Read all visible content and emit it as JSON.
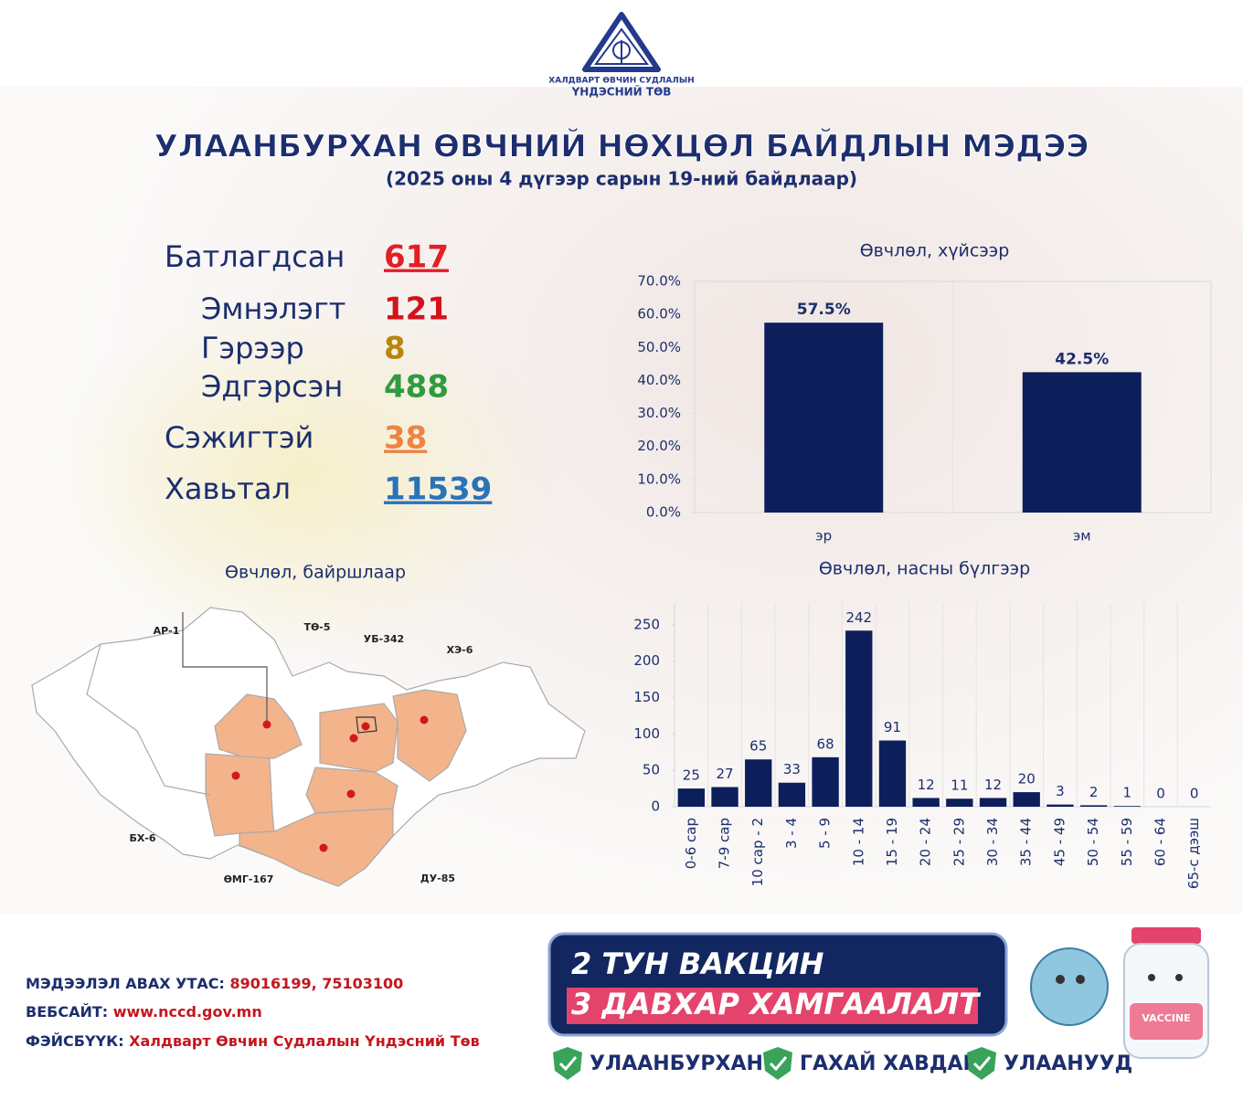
{
  "header": {
    "org_line1": "ХАЛДВАРТ ӨВЧИН СУДЛАЛЫН",
    "org_line2": "ҮНДЭСНИЙ ТӨВ",
    "title": "УЛААНБУРХАН ӨВЧНИЙ НӨХЦӨЛ БАЙДЛЫН МЭДЭЭ",
    "subtitle": "(2025 оны 4 дүгээр сарын 19-ний байдлаар)"
  },
  "stats": [
    {
      "label": "Батлагдсан",
      "value": 617,
      "color": "#e31e24",
      "underline": true,
      "indent": false
    },
    {
      "label": "Эмнэлэгт",
      "value": 121,
      "color": "#d4121a",
      "underline": false,
      "indent": true
    },
    {
      "label": "Гэрээр",
      "value": 8,
      "color": "#b8860b",
      "underline": false,
      "indent": true
    },
    {
      "label": "Эдгэрсэн",
      "value": 488,
      "color": "#2e9b3e",
      "underline": false,
      "indent": true
    },
    {
      "label": "Сэжигтэй",
      "value": 38,
      "color": "#ec8443",
      "underline": true,
      "indent": false
    },
    {
      "label": "Хавьтал",
      "value": 11539,
      "color": "#2b73b7",
      "underline": true,
      "indent": false
    }
  ],
  "map": {
    "title": "Өвчлөл, байршлаар",
    "labels": [
      "АР-1",
      "ТӨ-5",
      "УБ-342",
      "ХЭ-6",
      "БХ-6",
      "ӨМГ-167",
      "ДУ-85"
    ]
  },
  "chart_data": [
    {
      "type": "bar",
      "title": "Өвчлөл, хүйсээр",
      "categories": [
        "эр",
        "эм"
      ],
      "values": [
        57.5,
        42.5
      ],
      "value_labels": [
        "57.5%",
        "42.5%"
      ],
      "color": "#0c1f5b",
      "ylim": [
        0,
        70
      ],
      "yticks": [
        {
          "value": 0,
          "label": "0.0%"
        },
        {
          "value": 10,
          "label": "10.0%"
        },
        {
          "value": 20,
          "label": "20.0%"
        },
        {
          "value": 30,
          "label": "30.0%"
        },
        {
          "value": 40,
          "label": "40.0%"
        },
        {
          "value": 50,
          "label": "50.0%"
        },
        {
          "value": 60,
          "label": "60.0%"
        },
        {
          "value": 70,
          "label": "70.0%"
        }
      ]
    },
    {
      "type": "bar",
      "title": "Өвчлөл, насны бүлгээр",
      "categories": [
        "0-6 сар",
        "7-9 сар",
        "10 сар - 2",
        "3 - 4",
        "5 - 9",
        "10 - 14",
        "15 - 19",
        "20 - 24",
        "25 - 29",
        "30 - 34",
        "35 - 44",
        "45 - 49",
        "50 - 54",
        "55 - 59",
        "60 - 64",
        "65-с дээш"
      ],
      "values": [
        25,
        27,
        65,
        33,
        68,
        242,
        91,
        12,
        11,
        12,
        20,
        3,
        2,
        1,
        0,
        0
      ],
      "color": "#0c1f5b",
      "ylim": [
        0,
        280
      ],
      "yticks": [
        0,
        50,
        100,
        150,
        200,
        250
      ]
    }
  ],
  "footer": {
    "phone_label": "МЭДЭЭЛЭЛ АВАХ УТАС:",
    "phone": "89016199, 75103100",
    "web_label": "ВЕБСАЙТ:",
    "web": "www.nccd.gov.mn",
    "fb_label": "ФЭЙСБҮҮК:",
    "fb": "Халдварт Өвчин Судлалын Үндэсний Төв",
    "banner_line1": "2 ТУН ВАКЦИН",
    "banner_line2": "3 ДАВХАР ХАМГААЛАЛТ",
    "diseases": [
      "УЛААНБУРХАН",
      "ГАХАЙ ХАВДАР",
      "УЛААНУУД"
    ],
    "bottle_label": "VACCINE"
  }
}
